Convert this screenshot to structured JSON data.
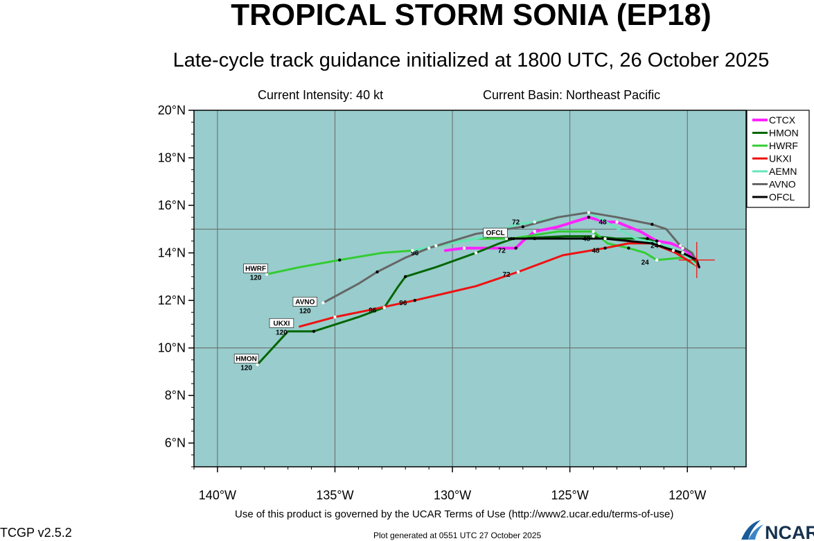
{
  "header": {
    "title": "TROPICAL STORM SONIA (EP18)",
    "subtitle": "Late-cycle track guidance initialized at 1800 UTC, 26 October 2025",
    "intensity": "Current Intensity: 40 kt",
    "basin": "Current Basin: Northeast Pacific"
  },
  "footer": {
    "terms": "Use of this product is governed by the UCAR Terms of Use (http://www2.ucar.edu/terms-of-use)",
    "version": "TCGP v2.5.2",
    "generated": "Plot generated at 0551 UTC   27 October 2025",
    "logo_text": "NCAR"
  },
  "colors": {
    "ocean": "#99cccc",
    "grid": "#666666",
    "storm_marker": "#ff0000"
  },
  "chart_data": {
    "type": "line",
    "xlim": [
      -141,
      -117.5
    ],
    "ylim": [
      5,
      20
    ],
    "x_ticks": [
      -140,
      -135,
      -130,
      -125,
      -120
    ],
    "x_tick_labels": [
      "140°W",
      "135°W",
      "130°W",
      "125°W",
      "120°W"
    ],
    "y_ticks": [
      6,
      8,
      10,
      12,
      14,
      16,
      18,
      20
    ],
    "y_tick_labels": [
      "6°N",
      "8°N",
      "10°N",
      "12°N",
      "14°N",
      "16°N",
      "18°N",
      "20°N"
    ],
    "grid_lon": [
      -140,
      -135,
      -130,
      -125,
      -120
    ],
    "grid_lat": [
      10,
      15
    ],
    "storm_position": [
      -119.6,
      13.7
    ],
    "legend_position": "right",
    "series": [
      {
        "name": "CTCX",
        "color": "#ff22ff",
        "width": 4,
        "points": [
          [
            -119.5,
            13.4
          ],
          [
            -119.7,
            13.8
          ],
          [
            -120.2,
            14.2
          ],
          [
            -120.7,
            14.4
          ],
          [
            -121.3,
            14.5
          ],
          [
            -122.0,
            14.9
          ],
          [
            -123.0,
            15.3
          ],
          [
            -123.5,
            15.3
          ],
          [
            -124.2,
            15.5
          ],
          [
            -125.5,
            15.1
          ],
          [
            -126.5,
            14.9
          ],
          [
            -127.0,
            14.5
          ],
          [
            -127.3,
            14.2
          ],
          [
            -128.5,
            14.2
          ],
          [
            -129.5,
            14.2
          ],
          [
            -130.3,
            14.1
          ]
        ],
        "labels": [
          {
            "text": "72",
            "lon": -127.9,
            "lat": 14.0
          },
          {
            "text": "96",
            "lon": -131.6,
            "lat": 13.9
          },
          {
            "text": "48",
            "lon": -123.6,
            "lat": 15.2
          }
        ],
        "end_label": {
          "lon": -130.3,
          "lat": 14.1,
          "hour": ""
        }
      },
      {
        "name": "HMON",
        "color": "#006600",
        "width": 3,
        "points": [
          [
            -119.5,
            13.4
          ],
          [
            -119.8,
            13.8
          ],
          [
            -120.6,
            14.1
          ],
          [
            -121.2,
            14.4
          ],
          [
            -121.7,
            14.6
          ],
          [
            -123.0,
            14.6
          ],
          [
            -124.0,
            14.7
          ],
          [
            -125.2,
            14.7
          ],
          [
            -127.4,
            14.6
          ],
          [
            -128.0,
            14.4
          ],
          [
            -129.0,
            14.0
          ],
          [
            -130.7,
            13.4
          ],
          [
            -132.0,
            13.0
          ],
          [
            -132.3,
            12.6
          ],
          [
            -132.9,
            11.7
          ],
          [
            -134.0,
            11.3
          ],
          [
            -135.9,
            10.7
          ],
          [
            -137.0,
            10.7
          ],
          [
            -138.3,
            9.3
          ]
        ],
        "labels": [
          {
            "text": "96",
            "lon": -133.4,
            "lat": 11.5
          }
        ],
        "end_label": {
          "lon": -138.3,
          "lat": 9.3,
          "hour": "120",
          "box": "HMON"
        }
      },
      {
        "name": "HWRF",
        "color": "#33cc33",
        "width": 3,
        "points": [
          [
            -119.5,
            13.4
          ],
          [
            -120.2,
            13.8
          ],
          [
            -121.3,
            13.7
          ],
          [
            -121.8,
            14.0
          ],
          [
            -122.5,
            14.2
          ],
          [
            -123.4,
            14.4
          ],
          [
            -124.0,
            14.9
          ],
          [
            -125.5,
            14.9
          ],
          [
            -127.5,
            14.6
          ],
          [
            -129.0,
            14.6
          ],
          [
            -131.7,
            14.1
          ],
          [
            -133.0,
            14.0
          ],
          [
            -134.8,
            13.7
          ],
          [
            -136.5,
            13.4
          ],
          [
            -137.9,
            13.1
          ]
        ],
        "labels": [
          {
            "text": "24",
            "lon": -121.8,
            "lat": 13.5
          }
        ],
        "end_label": {
          "lon": -137.9,
          "lat": 13.1,
          "hour": "120",
          "box": "HWRF"
        }
      },
      {
        "name": "UKXI",
        "color": "#ee1111",
        "width": 3,
        "points": [
          [
            -119.5,
            13.4
          ],
          [
            -120.5,
            14.0
          ],
          [
            -121.5,
            14.4
          ],
          [
            -122.5,
            14.4
          ],
          [
            -123.5,
            14.2
          ],
          [
            -125.3,
            13.9
          ],
          [
            -127.2,
            13.2
          ],
          [
            -129.0,
            12.6
          ],
          [
            -131.6,
            12.0
          ],
          [
            -133.5,
            11.6
          ],
          [
            -135.0,
            11.3
          ],
          [
            -136.5,
            10.9
          ]
        ],
        "labels": [
          {
            "text": "72",
            "lon": -127.7,
            "lat": 13.0
          },
          {
            "text": "48",
            "lon": -123.9,
            "lat": 14.0
          },
          {
            "text": "96",
            "lon": -132.1,
            "lat": 11.8
          }
        ],
        "end_label": {
          "lon": -136.8,
          "lat": 10.8,
          "hour": "120",
          "box": "UKXI"
        }
      },
      {
        "name": "AEMN",
        "color": "#66e6b8",
        "width": 3,
        "points": [
          [
            -119.5,
            13.4
          ],
          [
            -120.2,
            14.0
          ],
          [
            -121.2,
            14.4
          ],
          [
            -122.2,
            14.6
          ],
          [
            -124.2,
            15.7
          ],
          [
            -125.5,
            15.5
          ],
          [
            -126.5,
            15.3
          ],
          [
            -127.3,
            15.2
          ],
          [
            -128.5,
            14.7
          ],
          [
            -129.5,
            14.5
          ],
          [
            -130.7,
            14.3
          ],
          [
            -131.7,
            14.1
          ]
        ],
        "labels": [],
        "end_label": null
      },
      {
        "name": "AVNO",
        "color": "#666666",
        "width": 3,
        "points": [
          [
            -119.5,
            13.4
          ],
          [
            -119.8,
            14.0
          ],
          [
            -120.3,
            14.3
          ],
          [
            -120.9,
            15.0
          ],
          [
            -121.5,
            15.2
          ],
          [
            -123.0,
            15.5
          ],
          [
            -124.2,
            15.7
          ],
          [
            -125.5,
            15.5
          ],
          [
            -127.0,
            15.1
          ],
          [
            -129.0,
            14.8
          ],
          [
            -131.0,
            14.2
          ],
          [
            -132.0,
            13.8
          ],
          [
            -133.2,
            13.2
          ],
          [
            -134.0,
            12.7
          ],
          [
            -135.5,
            11.9
          ]
        ],
        "labels": [],
        "end_label": {
          "lon": -135.8,
          "lat": 11.7,
          "hour": "120",
          "box": "AVNO"
        }
      },
      {
        "name": "OFCL",
        "color": "#000000",
        "width": 3,
        "points": [
          [
            -119.5,
            13.4
          ],
          [
            -119.6,
            13.7
          ],
          [
            -120.2,
            14.0
          ],
          [
            -120.9,
            14.2
          ],
          [
            -121.5,
            14.4
          ],
          [
            -122.5,
            14.5
          ],
          [
            -123.5,
            14.6
          ],
          [
            -124.5,
            14.6
          ],
          [
            -126.5,
            14.6
          ],
          [
            -127.3,
            14.6
          ],
          [
            -127.7,
            14.6
          ]
        ],
        "labels": [
          {
            "text": "72",
            "lon": -127.3,
            "lat": 15.2
          },
          {
            "text": "48",
            "lon": -124.3,
            "lat": 14.5
          },
          {
            "text": "24",
            "lon": -121.4,
            "lat": 14.2
          }
        ],
        "end_label": {
          "lon": -127.7,
          "lat": 14.6,
          "hour": "",
          "box": "OFCL"
        }
      }
    ]
  }
}
